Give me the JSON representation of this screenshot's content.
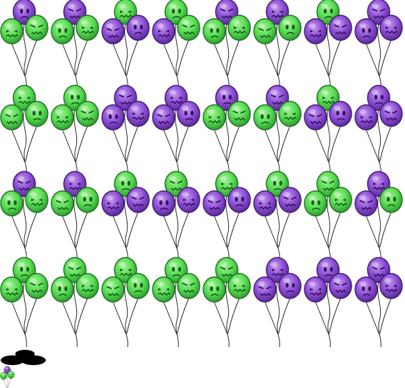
{
  "colors": {
    "green": {
      "base": "#58dd52",
      "light": "#a6f19a",
      "dark": "#2e9d32",
      "outline": "#1e6e22",
      "face": "#185e1e"
    },
    "purple": {
      "base": "#8d4fd6",
      "light": "#c69af0",
      "dark": "#5b2a9a",
      "outline": "#3f1b70",
      "face": "#35145e"
    },
    "string": "#222222",
    "shadow": "#000000"
  },
  "sprite_sheet": {
    "rows": [
      [
        {
          "top": "purple",
          "left": "green",
          "right": "green"
        },
        {
          "top": "purple",
          "left": "green",
          "right": "green"
        },
        {
          "top": "green",
          "left": "purple",
          "right": "purple"
        },
        {
          "top": "green",
          "left": "purple",
          "right": "green"
        },
        {
          "top": "purple",
          "left": "green",
          "right": "green"
        },
        {
          "top": "purple",
          "left": "green",
          "right": "green"
        },
        {
          "top": "green",
          "left": "purple",
          "right": "purple"
        },
        {
          "top": "purple",
          "left": "purple",
          "right": "purple"
        }
      ],
      [
        {
          "top": "green",
          "left": "green",
          "right": "green"
        },
        {
          "top": "green",
          "left": "green",
          "right": "green"
        },
        {
          "top": "purple",
          "left": "purple",
          "right": "purple"
        },
        {
          "top": "purple",
          "left": "purple",
          "right": "purple"
        },
        {
          "top": "purple",
          "left": "green",
          "right": "green"
        },
        {
          "top": "purple",
          "left": "green",
          "right": "green"
        },
        {
          "top": "green",
          "left": "purple",
          "right": "purple"
        },
        {
          "top": "purple",
          "left": "purple",
          "right": "purple"
        }
      ],
      [
        {
          "top": "purple",
          "left": "green",
          "right": "green"
        },
        {
          "top": "purple",
          "left": "green",
          "right": "green"
        },
        {
          "top": "green",
          "left": "purple",
          "right": "purple"
        },
        {
          "top": "green",
          "left": "purple",
          "right": "purple"
        },
        {
          "top": "green",
          "left": "purple",
          "right": "purple"
        },
        {
          "top": "green",
          "left": "purple",
          "right": "purple"
        },
        {
          "top": "green",
          "left": "green",
          "right": "green"
        },
        {
          "top": "purple",
          "left": "purple",
          "right": "green"
        }
      ],
      [
        {
          "top": "green",
          "left": "green",
          "right": "green"
        },
        {
          "top": "green",
          "left": "green",
          "right": "green"
        },
        {
          "top": "green",
          "left": "green",
          "right": "green"
        },
        {
          "top": "green",
          "left": "green",
          "right": "green"
        },
        {
          "top": "green",
          "left": "green",
          "right": "green"
        },
        {
          "top": "purple",
          "left": "purple",
          "right": "purple"
        },
        {
          "top": "purple",
          "left": "purple",
          "right": "purple"
        },
        {
          "top": "purple",
          "left": "purple",
          "right": "purple"
        }
      ]
    ],
    "mini_icon": {
      "top": "purple",
      "left": "green",
      "right": "green"
    },
    "shadow_icon": "shadow-blob"
  }
}
